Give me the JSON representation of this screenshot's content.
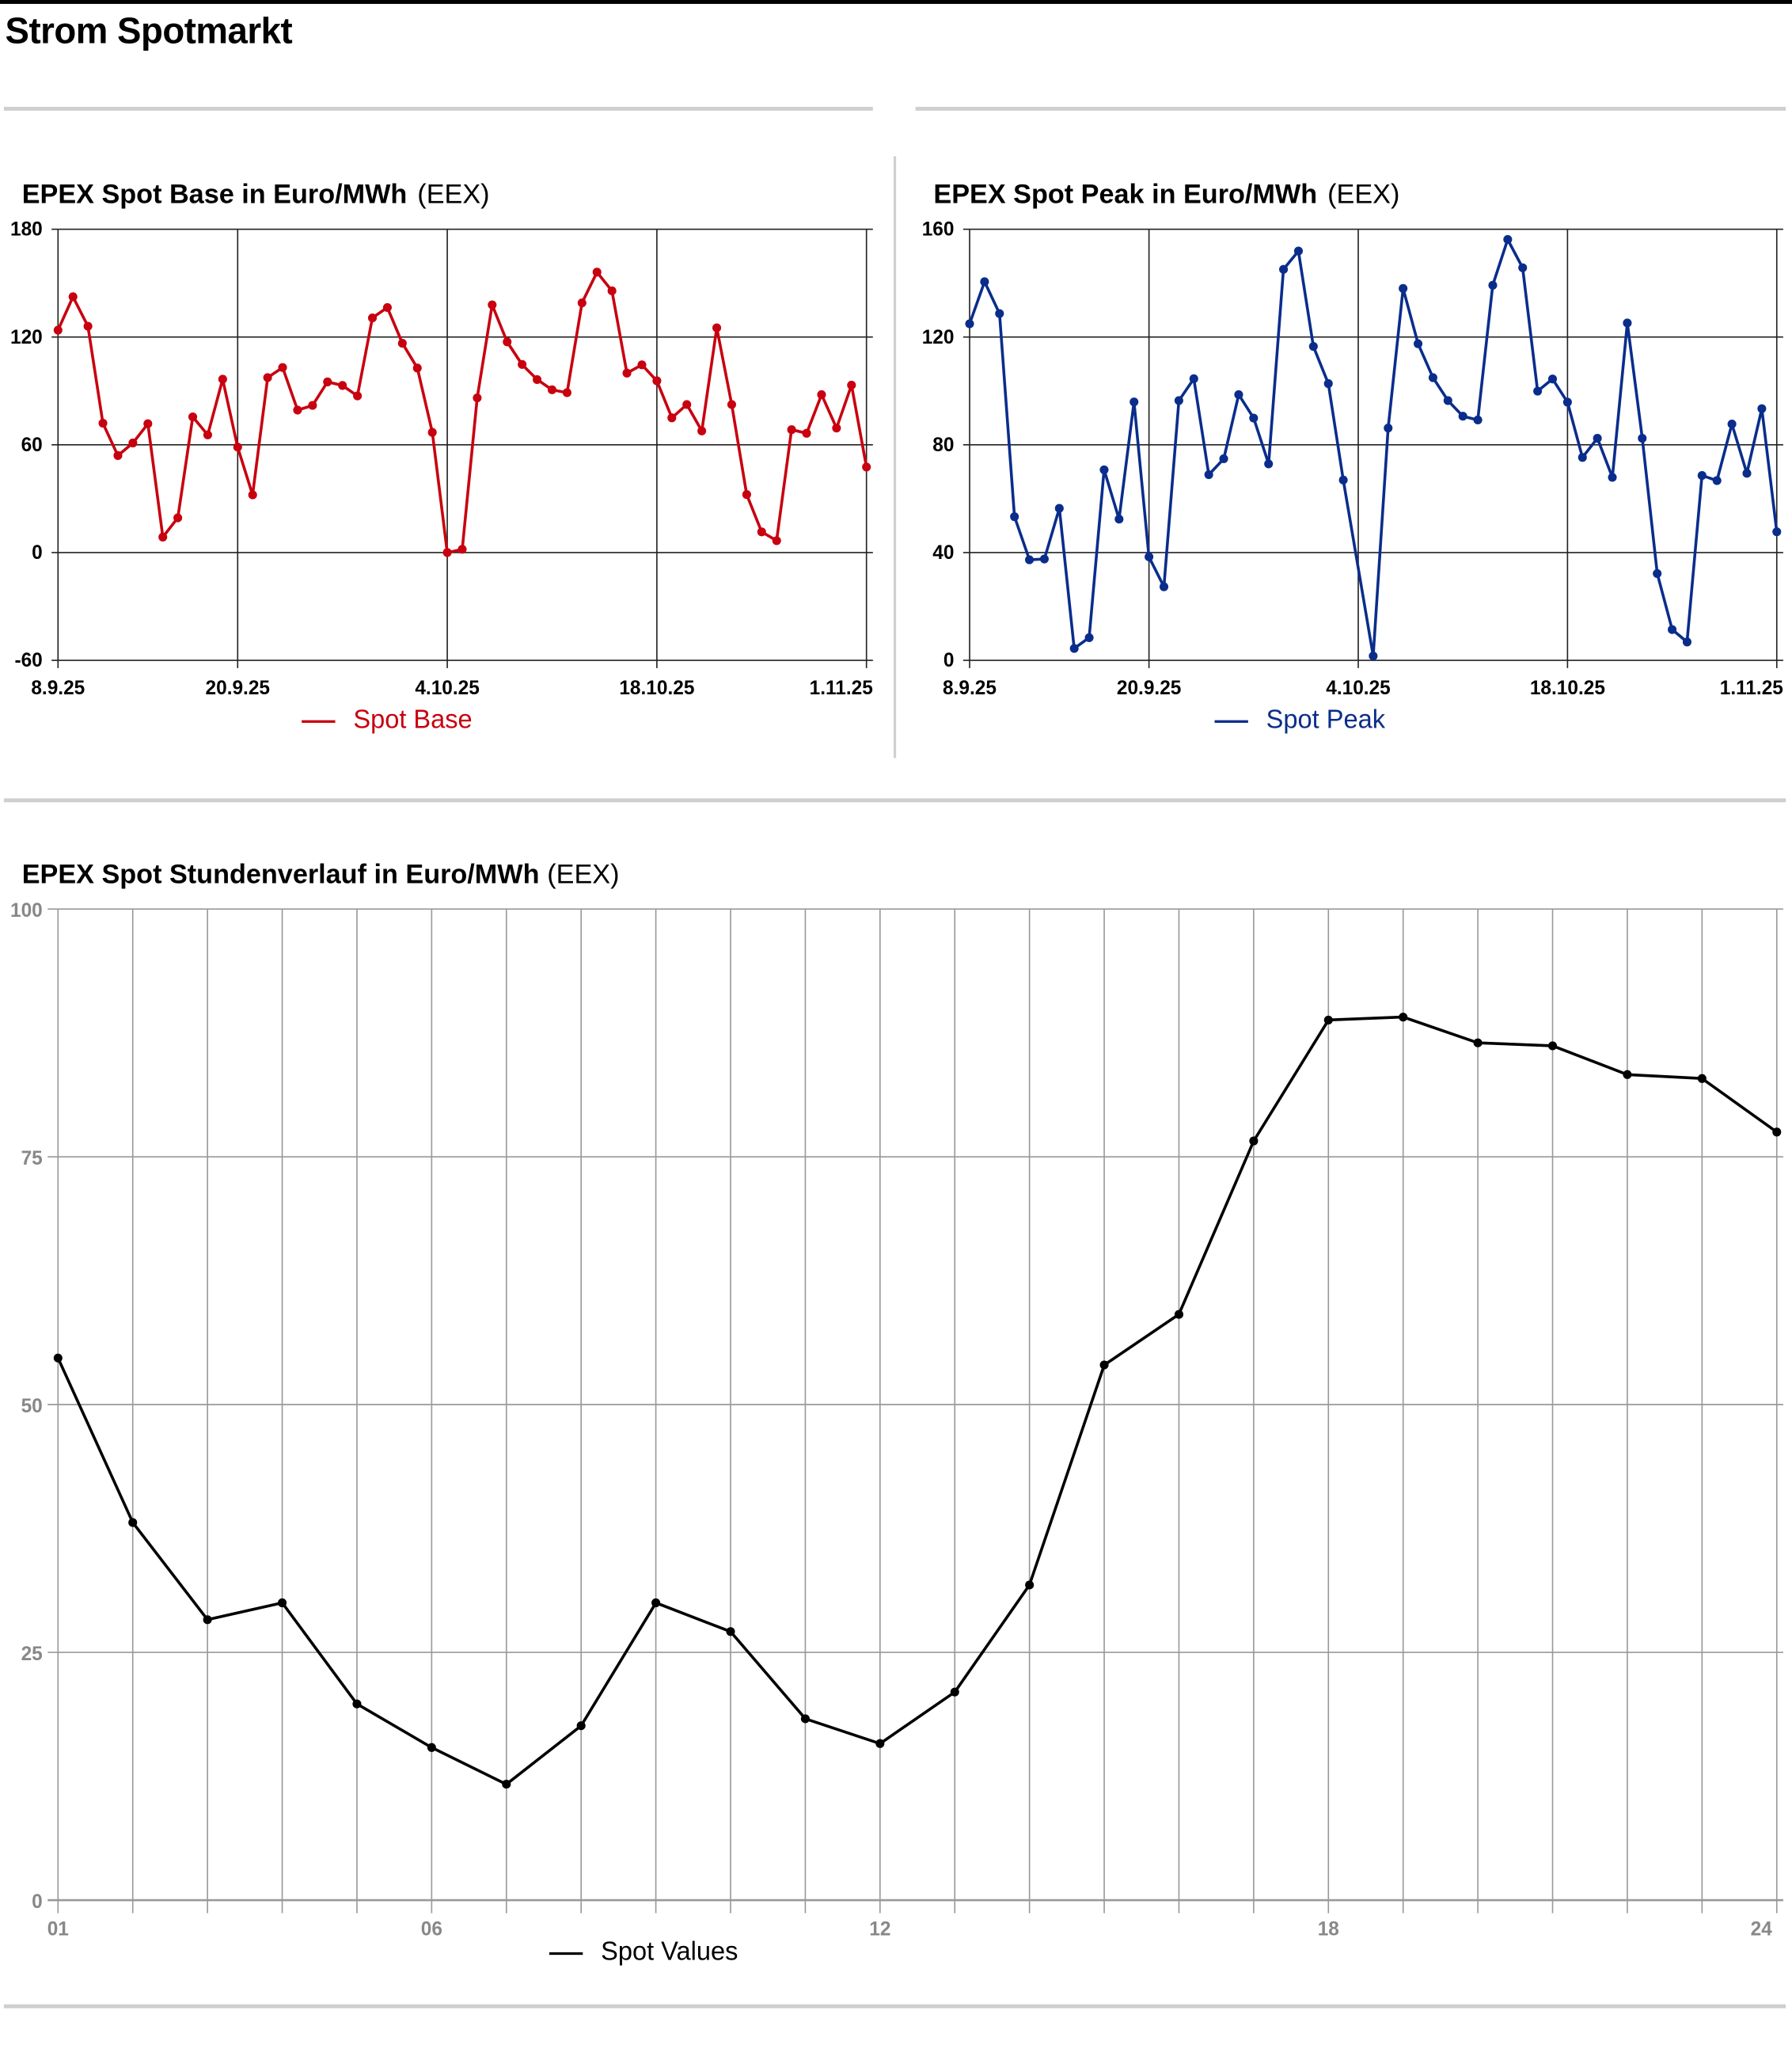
{
  "page": {
    "title": "Strom Spotmarkt"
  },
  "charts": {
    "base": {
      "title": "EPEX Spot Base in Euro/MWh",
      "source": "(EEX)",
      "legend": "Spot Base",
      "color": "#c8000f"
    },
    "peak": {
      "title": "EPEX Spot Peak in Euro/MWh",
      "source": "(EEX)",
      "legend": "Spot Peak",
      "color": "#0a2d8c"
    },
    "hourly": {
      "title": "EPEX Spot Stundenverlauf in Euro/MWh",
      "source": "(EEX)",
      "legend": "Spot Values",
      "color": "#000000"
    }
  },
  "chart_data": [
    {
      "type": "line",
      "title": "EPEX Spot Base in Euro/MWh (EEX)",
      "xlabel": "",
      "ylabel": "Euro/MWh",
      "x_start": "8.9.25",
      "x_step_days": 1,
      "x_ticks": [
        "8.9.25",
        "20.9.25",
        "4.10.25",
        "18.10.25",
        "1.11.25"
      ],
      "x_tick_index": [
        0,
        12,
        26,
        40,
        54
      ],
      "y_ticks": [
        -60,
        0,
        60,
        120,
        180
      ],
      "ylim": [
        -60,
        180
      ],
      "grid": true,
      "legend_position": "bottom",
      "series": [
        {
          "name": "Spot Base",
          "color": "#c8000f",
          "values": [
            123.8,
            142.4,
            126,
            72,
            54,
            61,
            71.7,
            8.6,
            19.3,
            75.5,
            65.5,
            96.5,
            58.7,
            32.1,
            97.4,
            103,
            79.3,
            81.9,
            95,
            93,
            87.2,
            130.6,
            136.4,
            116.5,
            102.7,
            66.9,
            0,
            1.8,
            86.1,
            137.9,
            117.3,
            104.7,
            96.3,
            90.6,
            89,
            139,
            156.1,
            145.7,
            99.9,
            104.5,
            95.6,
            75,
            82.4,
            67.7,
            125.1,
            82.4,
            32.3,
            11.5,
            6.6,
            68.4,
            66.4,
            87.9,
            69.3,
            93.2,
            47.6
          ]
        }
      ]
    },
    {
      "type": "line",
      "title": "EPEX Spot Peak in Euro/MWh (EEX)",
      "xlabel": "",
      "ylabel": "Euro/MWh",
      "x_start": "8.9.25",
      "x_step_days": 1,
      "x_ticks": [
        "8.9.25",
        "20.9.25",
        "4.10.25",
        "18.10.25",
        "1.11.25"
      ],
      "x_tick_index": [
        0,
        12,
        26,
        40,
        54
      ],
      "y_ticks": [
        0,
        40,
        80,
        120,
        160
      ],
      "ylim": [
        0,
        160
      ],
      "grid": true,
      "legend_position": "bottom",
      "series": [
        {
          "name": "Spot Peak",
          "color": "#0a2d8c",
          "values": [
            124.9,
            140.5,
            128.7,
            53.3,
            37.3,
            37.6,
            56.4,
            4.4,
            8.4,
            70.7,
            52.4,
            95.9,
            38.4,
            27.3,
            96.4,
            104.5,
            68.9,
            74.8,
            98.6,
            89.9,
            72.9,
            145.1,
            151.9,
            116.5,
            102.7,
            66.9,
            null,
            1.6,
            86.2,
            138,
            117.5,
            104.9,
            96.4,
            90.6,
            89.2,
            139.2,
            156.2,
            145.7,
            99.9,
            104.4,
            95.8,
            75.3,
            82.4,
            67.9,
            125.2,
            82.4,
            32.2,
            11.4,
            6.8,
            68.6,
            66.7,
            87.7,
            69.4,
            93.4,
            47.7
          ]
        }
      ]
    },
    {
      "type": "line",
      "title": "EPEX Spot Stundenverlauf in Euro/MWh (EEX)",
      "xlabel": "",
      "ylabel": "Euro/MWh",
      "x": [
        1,
        2,
        3,
        4,
        5,
        6,
        7,
        8,
        9,
        10,
        11,
        12,
        13,
        14,
        15,
        16,
        17,
        18,
        19,
        20,
        21,
        22,
        23,
        24
      ],
      "x_ticks": [
        "01",
        "06",
        "12",
        "18",
        "24"
      ],
      "x_tick_values": [
        1,
        6,
        12,
        18,
        24
      ],
      "y_ticks": [
        0,
        25,
        50,
        75,
        100
      ],
      "ylim": [
        0,
        100
      ],
      "grid": true,
      "legend_position": "bottom",
      "series": [
        {
          "name": "Spot Values",
          "color": "#000000",
          "values": [
            54.7,
            38.1,
            28.3,
            30,
            19.8,
            15.4,
            11.7,
            17.6,
            30,
            27.1,
            18.3,
            15.8,
            21,
            31.8,
            54,
            59.1,
            76.6,
            88.8,
            89.1,
            86.5,
            86.2,
            83.3,
            82.9,
            77.5
          ]
        }
      ]
    }
  ]
}
